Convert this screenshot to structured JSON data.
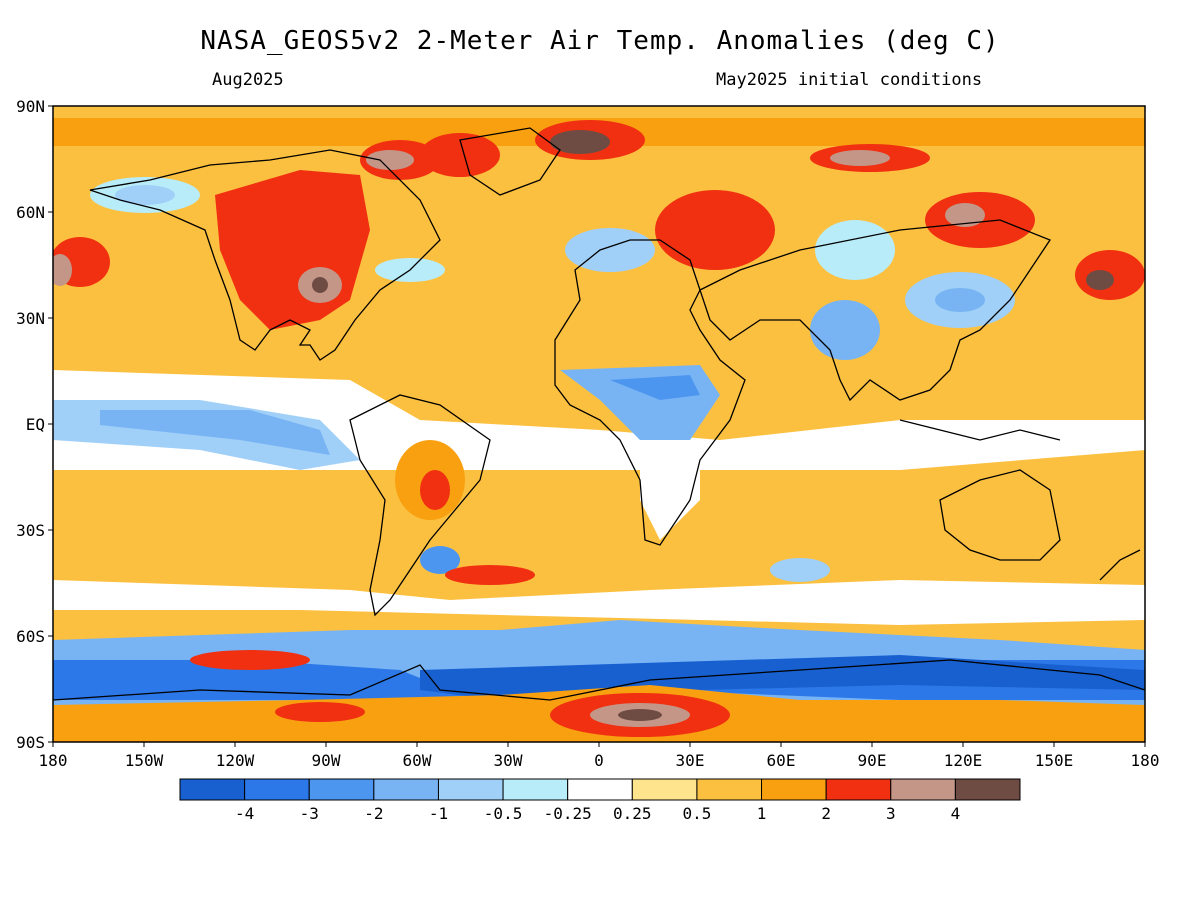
{
  "title": "NASA_GEOS5v2 2-Meter Air Temp. Anomalies (deg C)",
  "subtitle_left": "Aug2025",
  "subtitle_right": "May2025 initial conditions",
  "map": {
    "projection": "equirectangular",
    "lon_range": [
      -180,
      180
    ],
    "lat_range": [
      -90,
      90
    ],
    "lat_ticks": [
      "90N",
      "60N",
      "30N",
      "EQ",
      "30S",
      "60S",
      "90S"
    ],
    "lon_ticks": [
      "180",
      "150W",
      "120W",
      "90W",
      "60W",
      "30W",
      "0",
      "30E",
      "60E",
      "90E",
      "120E",
      "150E",
      "180"
    ]
  },
  "colorbar": {
    "colors": [
      "#1860d0",
      "#2c78e8",
      "#4c96f0",
      "#78b4f4",
      "#a0d0f8",
      "#b8ecf8",
      "#ffffff",
      "#fee48c",
      "#fcc040",
      "#f8a010",
      "#f03010",
      "#c49688",
      "#6e4c44"
    ],
    "labels": [
      "-4",
      "-3",
      "-2",
      "-1",
      "-0.5",
      "-0.25",
      "0.25",
      "0.5",
      "1",
      "2",
      "3",
      "4"
    ]
  }
}
